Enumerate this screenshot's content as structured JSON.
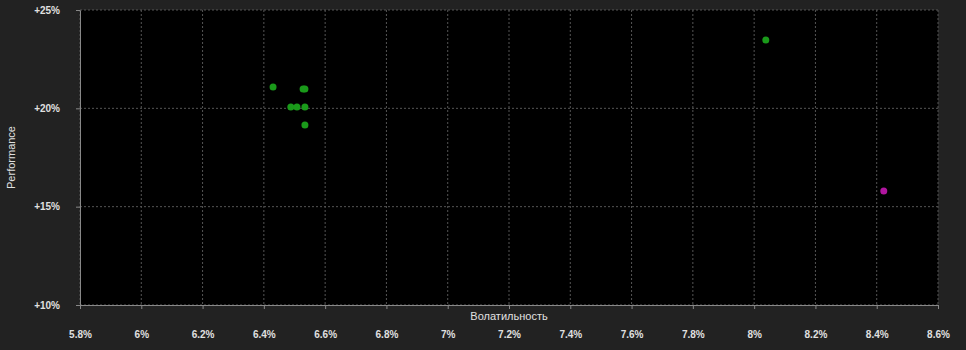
{
  "chart_data": {
    "type": "scatter",
    "x_label": "Волатильность",
    "y_label": "Performance",
    "x": [
      6.43,
      6.528,
      6.534,
      6.488,
      6.508,
      6.534,
      6.534,
      8.038,
      8.423
    ],
    "values": [
      21.09,
      20.98,
      20.98,
      20.07,
      20.07,
      20.07,
      19.15,
      23.47,
      15.8
    ],
    "colors": [
      "#1a9a1a",
      "#1a9a1a",
      "#1a9a1a",
      "#1a9a1a",
      "#1a9a1a",
      "#1a9a1a",
      "#1a9a1a",
      "#1a9a1a",
      "#b0159f"
    ],
    "xlim": [
      5.8,
      8.6
    ],
    "xticks": [
      {
        "value": 5.8,
        "label": "5.8%"
      },
      {
        "value": 6,
        "label": "6%"
      },
      {
        "value": 6.2,
        "label": "6.2%"
      },
      {
        "value": 6.4,
        "label": "6.4%"
      },
      {
        "value": 6.6,
        "label": "6.6%"
      },
      {
        "value": 6.8,
        "label": "6.8%"
      },
      {
        "value": 7,
        "label": "7%"
      },
      {
        "value": 7.2,
        "label": "7.2%"
      },
      {
        "value": 7.4,
        "label": "7.4%"
      },
      {
        "value": 7.6,
        "label": "7.6%"
      },
      {
        "value": 7.8,
        "label": "7.8%"
      },
      {
        "value": 8,
        "label": "8%"
      },
      {
        "value": 8.2,
        "label": "8.2%"
      },
      {
        "value": 8.4,
        "label": "8.4%"
      },
      {
        "value": 8.6,
        "label": "8.6%"
      }
    ],
    "ylim": [
      10,
      25
    ],
    "yticks": [
      {
        "value": 10,
        "label": "+10%"
      },
      {
        "value": 15,
        "label": "+15%"
      },
      {
        "value": 20,
        "label": "+20%"
      },
      {
        "value": 25,
        "label": "+25%"
      }
    ],
    "grid": true,
    "marker": "circle"
  }
}
